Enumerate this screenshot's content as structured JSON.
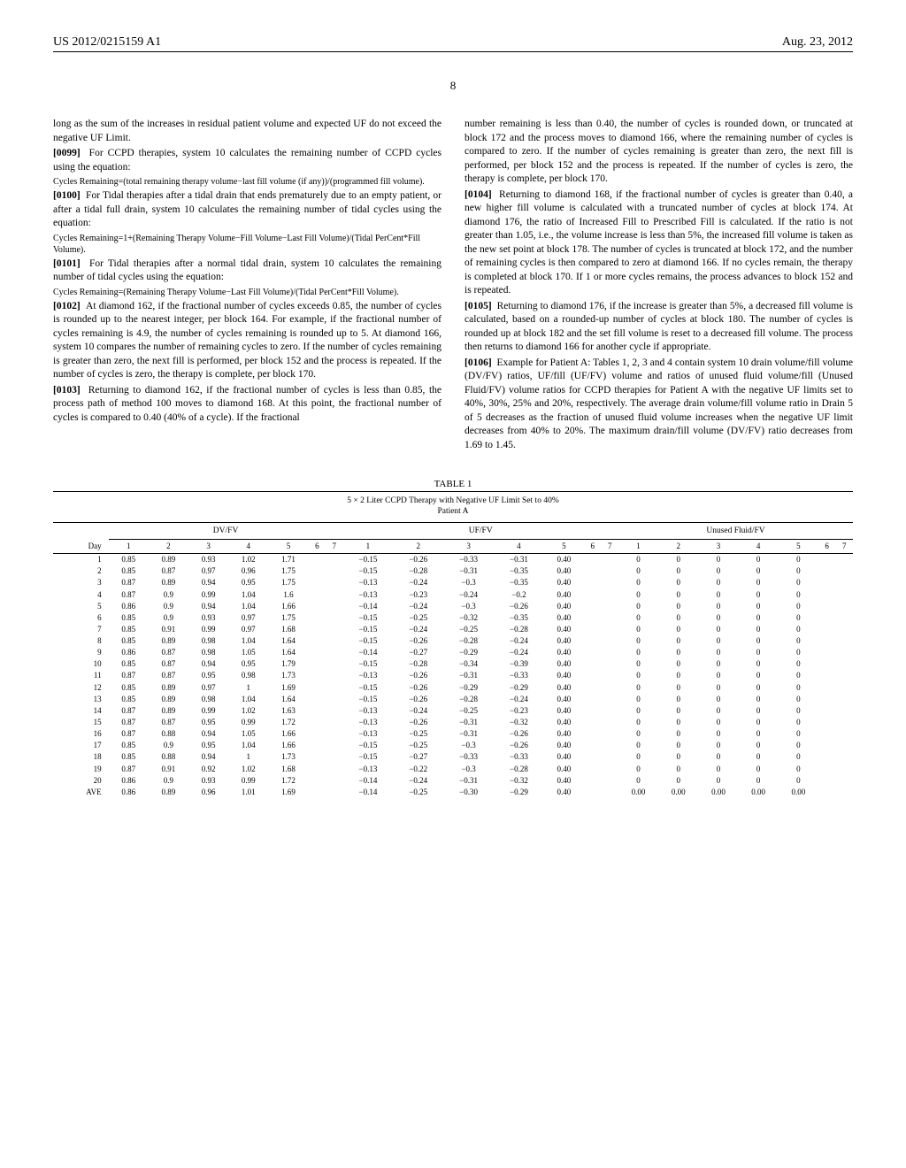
{
  "header": {
    "pub_number": "US 2012/0215159 A1",
    "pub_date": "Aug. 23, 2012",
    "page_num": "8"
  },
  "left_col": {
    "p0098_cont": "long as the sum of the increases in residual patient volume and expected UF do not exceed the negative UF Limit.",
    "p0099_label": "[0099]",
    "p0099": "For CCPD therapies, system 10 calculates the remaining number of CCPD cycles using the equation:",
    "eq1": "Cycles Remaining=(total remaining therapy volume−last fill volume (if any))/(programmed fill volume).",
    "p0100_label": "[0100]",
    "p0100": "For Tidal therapies after a tidal drain that ends prematurely due to an empty patient, or after a tidal full drain, system 10 calculates the remaining number of tidal cycles using the equation:",
    "eq2": "Cycles Remaining=1+(Remaining Therapy Volume−Fill Volume−Last Fill Volume)/(Tidal PerCent*Fill Volume).",
    "p0101_label": "[0101]",
    "p0101": "For Tidal therapies after a normal tidal drain, system 10 calculates the remaining number of tidal cycles using the equation:",
    "eq3": "Cycles Remaining=(Remaining Therapy Volume−Last Fill Volume)/(Tidal PerCent*Fill Volume).",
    "p0102_label": "[0102]",
    "p0102": "At diamond 162, if the fractional number of cycles exceeds 0.85, the number of cycles is rounded up to the nearest integer, per block 164. For example, if the fractional number of cycles remaining is 4.9, the number of cycles remaining is rounded up to 5. At diamond 166, system 10 compares the number of remaining cycles to zero. If the number of cycles remaining is greater than zero, the next fill is performed, per block 152 and the process is repeated. If the number of cycles is zero, the therapy is complete, per block 170.",
    "p0103_label": "[0103]",
    "p0103": "Returning to diamond 162, if the fractional number of cycles is less than 0.85, the process path of method 100 moves to diamond 168. At this point, the fractional number of cycles is compared to 0.40 (40% of a cycle). If the fractional"
  },
  "right_col": {
    "p0103_cont": "number remaining is less than 0.40, the number of cycles is rounded down, or truncated at block 172 and the process moves to diamond 166, where the remaining number of cycles is compared to zero. If the number of cycles remaining is greater than zero, the next fill is performed, per block 152 and the process is repeated. If the number of cycles is zero, the therapy is complete, per block 170.",
    "p0104_label": "[0104]",
    "p0104": "Returning to diamond 168, if the fractional number of cycles is greater than 0.40, a new higher fill volume is calculated with a truncated number of cycles at block 174. At diamond 176, the ratio of Increased Fill to Prescribed Fill is calculated. If the ratio is not greater than 1.05, i.e., the volume increase is less than 5%, the increased fill volume is taken as the new set point at block 178. The number of cycles is truncated at block 172, and the number of remaining cycles is then compared to zero at diamond 166. If no cycles remain, the therapy is completed at block 170. If 1 or more cycles remains, the process advances to block 152 and is repeated.",
    "p0105_label": "[0105]",
    "p0105": "Returning to diamond 176, if the increase is greater than 5%, a decreased fill volume is calculated, based on a rounded-up number of cycles at block 180. The number of cycles is rounded up at block 182 and the set fill volume is reset to a decreased fill volume. The process then returns to diamond 166 for another cycle if appropriate.",
    "p0106_label": "[0106]",
    "p0106": "Example for Patient A: Tables 1, 2, 3 and 4 contain system 10 drain volume/fill volume (DV/FV) ratios, UF/fill (UF/FV) volume and ratios of unused fluid volume/fill (Unused Fluid/FV) volume ratios for CCPD therapies for Patient A with the negative UF limits set to 40%, 30%, 25% and 20%, respectively. The average drain volume/fill volume ratio in Drain 5 of 5 decreases as the fraction of unused fluid volume increases when the negative UF limit decreases from 40% to 20%. The maximum drain/fill volume (DV/FV) ratio decreases from 1.69 to 1.45."
  },
  "table": {
    "title": "TABLE 1",
    "caption_line1": "5 × 2 Liter CCPD Therapy with Negative UF Limit Set to 40%",
    "caption_line2": "Patient A",
    "group_labels": [
      "DV/FV",
      "UF/FV",
      "Unused Fluid/FV"
    ],
    "sub_header_day": "Day",
    "sub_header_nums": [
      "1",
      "2",
      "3",
      "4",
      "5",
      "6",
      "7",
      "1",
      "2",
      "3",
      "4",
      "5",
      "6",
      "7",
      "1",
      "2",
      "3",
      "4",
      "5",
      "6",
      "7"
    ],
    "rows": [
      {
        "day": "1",
        "v": [
          "0.85",
          "0.89",
          "0.93",
          "1.02",
          "1.71",
          "",
          "",
          "−0.15",
          "−0.26",
          "−0.33",
          "−0.31",
          "0.40",
          "",
          "",
          "0",
          "0",
          "0",
          "0",
          "0",
          "",
          ""
        ]
      },
      {
        "day": "2",
        "v": [
          "0.85",
          "0.87",
          "0.97",
          "0.96",
          "1.75",
          "",
          "",
          "−0.15",
          "−0.28",
          "−0.31",
          "−0.35",
          "0.40",
          "",
          "",
          "0",
          "0",
          "0",
          "0",
          "0",
          "",
          ""
        ]
      },
      {
        "day": "3",
        "v": [
          "0.87",
          "0.89",
          "0.94",
          "0.95",
          "1.75",
          "",
          "",
          "−0.13",
          "−0.24",
          "−0.3",
          "−0.35",
          "0.40",
          "",
          "",
          "0",
          "0",
          "0",
          "0",
          "0",
          "",
          ""
        ]
      },
      {
        "day": "4",
        "v": [
          "0.87",
          "0.9",
          "0.99",
          "1.04",
          "1.6",
          "",
          "",
          "−0.13",
          "−0.23",
          "−0.24",
          "−0.2",
          "0.40",
          "",
          "",
          "0",
          "0",
          "0",
          "0",
          "0",
          "",
          ""
        ]
      },
      {
        "day": "5",
        "v": [
          "0.86",
          "0.9",
          "0.94",
          "1.04",
          "1.66",
          "",
          "",
          "−0.14",
          "−0.24",
          "−0.3",
          "−0.26",
          "0.40",
          "",
          "",
          "0",
          "0",
          "0",
          "0",
          "0",
          "",
          ""
        ]
      },
      {
        "day": "6",
        "v": [
          "0.85",
          "0.9",
          "0.93",
          "0.97",
          "1.75",
          "",
          "",
          "−0.15",
          "−0.25",
          "−0.32",
          "−0.35",
          "0.40",
          "",
          "",
          "0",
          "0",
          "0",
          "0",
          "0",
          "",
          ""
        ]
      },
      {
        "day": "7",
        "v": [
          "0.85",
          "0.91",
          "0.99",
          "0.97",
          "1.68",
          "",
          "",
          "−0.15",
          "−0.24",
          "−0.25",
          "−0.28",
          "0.40",
          "",
          "",
          "0",
          "0",
          "0",
          "0",
          "0",
          "",
          ""
        ]
      },
      {
        "day": "8",
        "v": [
          "0.85",
          "0.89",
          "0.98",
          "1.04",
          "1.64",
          "",
          "",
          "−0.15",
          "−0.26",
          "−0.28",
          "−0.24",
          "0.40",
          "",
          "",
          "0",
          "0",
          "0",
          "0",
          "0",
          "",
          ""
        ]
      },
      {
        "day": "9",
        "v": [
          "0.86",
          "0.87",
          "0.98",
          "1.05",
          "1.64",
          "",
          "",
          "−0.14",
          "−0.27",
          "−0.29",
          "−0.24",
          "0.40",
          "",
          "",
          "0",
          "0",
          "0",
          "0",
          "0",
          "",
          ""
        ]
      },
      {
        "day": "10",
        "v": [
          "0.85",
          "0.87",
          "0.94",
          "0.95",
          "1.79",
          "",
          "",
          "−0.15",
          "−0.28",
          "−0.34",
          "−0.39",
          "0.40",
          "",
          "",
          "0",
          "0",
          "0",
          "0",
          "0",
          "",
          ""
        ]
      },
      {
        "day": "11",
        "v": [
          "0.87",
          "0.87",
          "0.95",
          "0.98",
          "1.73",
          "",
          "",
          "−0.13",
          "−0.26",
          "−0.31",
          "−0.33",
          "0.40",
          "",
          "",
          "0",
          "0",
          "0",
          "0",
          "0",
          "",
          ""
        ]
      },
      {
        "day": "12",
        "v": [
          "0.85",
          "0.89",
          "0.97",
          "1",
          "1.69",
          "",
          "",
          "−0.15",
          "−0.26",
          "−0.29",
          "−0.29",
          "0.40",
          "",
          "",
          "0",
          "0",
          "0",
          "0",
          "0",
          "",
          ""
        ]
      },
      {
        "day": "13",
        "v": [
          "0.85",
          "0.89",
          "0.98",
          "1.04",
          "1.64",
          "",
          "",
          "−0.15",
          "−0.26",
          "−0.28",
          "−0.24",
          "0.40",
          "",
          "",
          "0",
          "0",
          "0",
          "0",
          "0",
          "",
          ""
        ]
      },
      {
        "day": "14",
        "v": [
          "0.87",
          "0.89",
          "0.99",
          "1.02",
          "1.63",
          "",
          "",
          "−0.13",
          "−0.24",
          "−0.25",
          "−0.23",
          "0.40",
          "",
          "",
          "0",
          "0",
          "0",
          "0",
          "0",
          "",
          ""
        ]
      },
      {
        "day": "15",
        "v": [
          "0.87",
          "0.87",
          "0.95",
          "0.99",
          "1.72",
          "",
          "",
          "−0.13",
          "−0.26",
          "−0.31",
          "−0.32",
          "0.40",
          "",
          "",
          "0",
          "0",
          "0",
          "0",
          "0",
          "",
          ""
        ]
      },
      {
        "day": "16",
        "v": [
          "0.87",
          "0.88",
          "0.94",
          "1.05",
          "1.66",
          "",
          "",
          "−0.13",
          "−0.25",
          "−0.31",
          "−0.26",
          "0.40",
          "",
          "",
          "0",
          "0",
          "0",
          "0",
          "0",
          "",
          ""
        ]
      },
      {
        "day": "17",
        "v": [
          "0.85",
          "0.9",
          "0.95",
          "1.04",
          "1.66",
          "",
          "",
          "−0.15",
          "−0.25",
          "−0.3",
          "−0.26",
          "0.40",
          "",
          "",
          "0",
          "0",
          "0",
          "0",
          "0",
          "",
          ""
        ]
      },
      {
        "day": "18",
        "v": [
          "0.85",
          "0.88",
          "0.94",
          "1",
          "1.73",
          "",
          "",
          "−0.15",
          "−0.27",
          "−0.33",
          "−0.33",
          "0.40",
          "",
          "",
          "0",
          "0",
          "0",
          "0",
          "0",
          "",
          ""
        ]
      },
      {
        "day": "19",
        "v": [
          "0.87",
          "0.91",
          "0.92",
          "1.02",
          "1.68",
          "",
          "",
          "−0.13",
          "−0.22",
          "−0.3",
          "−0.28",
          "0.40",
          "",
          "",
          "0",
          "0",
          "0",
          "0",
          "0",
          "",
          ""
        ]
      },
      {
        "day": "20",
        "v": [
          "0.86",
          "0.9",
          "0.93",
          "0.99",
          "1.72",
          "",
          "",
          "−0.14",
          "−0.24",
          "−0.31",
          "−0.32",
          "0.40",
          "",
          "",
          "0",
          "0",
          "0",
          "0",
          "0",
          "",
          ""
        ]
      },
      {
        "day": "AVE",
        "v": [
          "0.86",
          "0.89",
          "0.96",
          "1.01",
          "1.69",
          "",
          "",
          "−0.14",
          "−0.25",
          "−0.30",
          "−0.29",
          "0.40",
          "",
          "",
          "0.00",
          "0.00",
          "0.00",
          "0.00",
          "0.00",
          "",
          ""
        ]
      }
    ]
  }
}
